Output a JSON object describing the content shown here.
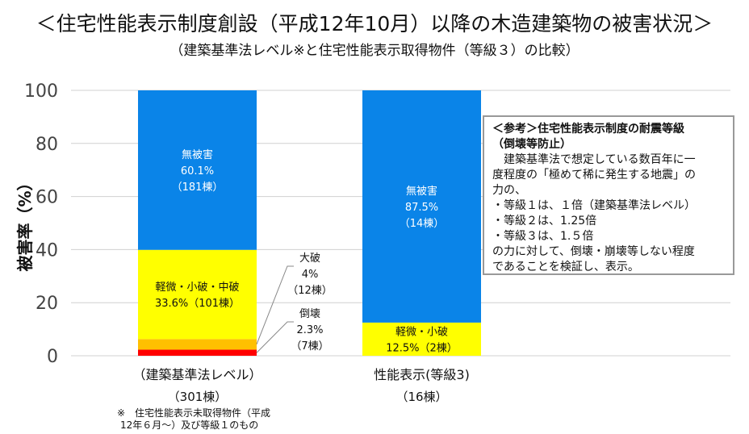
{
  "title": "＜住宅性能表示制度創設（平成12年10月）以降の木造建築物の被害状況＞",
  "subtitle": "（建築基準法レベル※と住宅性能表示取得物件（等級３）の比較）",
  "footnote": [
    "※　住宅性能表示未取得物件（平成",
    "12年６月～）及び等級１のもの"
  ],
  "note": {
    "heading": [
      "＜参考＞住宅性能表示制度の耐震等級",
      "（倒壊等防止）"
    ],
    "lines": [
      "　建築基準法で想定している数百年に一",
      "度程度の「極めて稀に発生する地震」の",
      "力の、",
      "・等級１は、１倍（建築基準法レベル）",
      "・等級２は、1.25倍",
      "・等級３は、1.５倍",
      "の力に対して、倒壊・崩壊等しない程度",
      "であることを検証し、表示。"
    ]
  },
  "chart_data": {
    "type": "bar",
    "stacked": true,
    "ylabel": "被害率（%）",
    "ylim": [
      0,
      100
    ],
    "yticks": [
      "0",
      "20",
      "40",
      "60",
      "80",
      "100"
    ],
    "grid": true,
    "categories": [
      {
        "label": "（建築基準法レベル）",
        "count": "（301棟）"
      },
      {
        "label": "性能表示(等級3)",
        "count": "（16棟）"
      }
    ],
    "stacks": [
      [
        {
          "name": "倒壊",
          "value": 2.3,
          "color": "#ff0000",
          "labels": [
            "倒壊",
            "2.3%",
            "（7棟）"
          ],
          "external": true
        },
        {
          "name": "大破",
          "value": 4,
          "color": "#ffc000",
          "labels": [
            "大破",
            "4%",
            "（12棟）"
          ],
          "external": true
        },
        {
          "name": "軽微・小破・中破",
          "value": 33.6,
          "color": "#ffff00",
          "labels": [
            "軽微・小破・中破",
            "33.6%（101棟）"
          ]
        },
        {
          "name": "無被害",
          "value": 60.1,
          "color": "#0a84e8",
          "labels": [
            "無被害",
            "60.1%",
            "（181棟）"
          ]
        }
      ],
      [
        {
          "name": "軽微・小破",
          "value": 12.5,
          "color": "#ffff00",
          "labels": [
            "軽微・小破",
            "12.5%（2棟）"
          ]
        },
        {
          "name": "無被害",
          "value": 87.5,
          "color": "#0a84e8",
          "labels": [
            "無被害",
            "87.5%",
            "（14棟）"
          ]
        }
      ]
    ]
  }
}
